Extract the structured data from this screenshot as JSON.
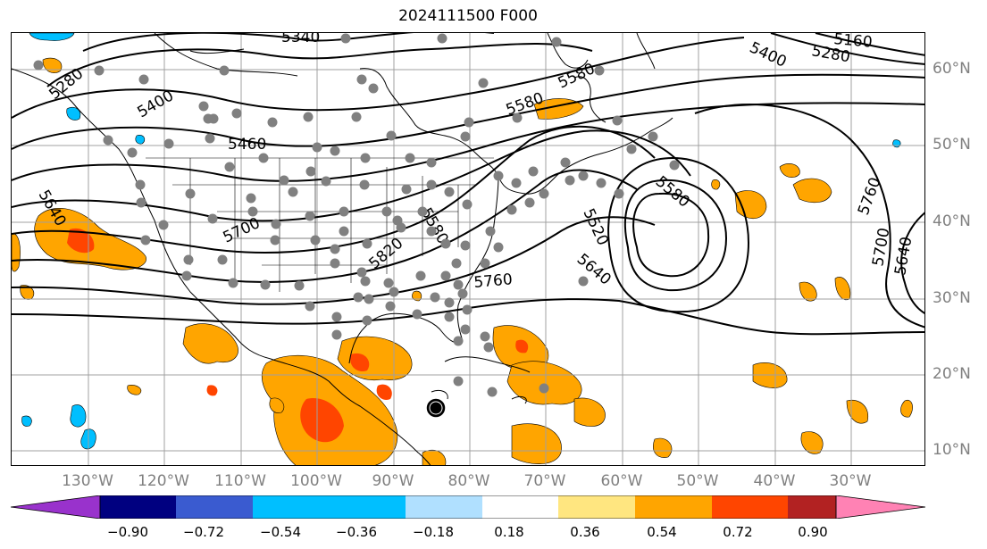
{
  "title": "2024111500 F000",
  "lat_labels": [
    "60°N",
    "50°N",
    "40°N",
    "30°N",
    "20°N",
    "10°N"
  ],
  "lon_labels": [
    "130°W",
    "120°W",
    "110°W",
    "100°W",
    "90°W",
    "80°W",
    "70°W",
    "60°W",
    "50°W",
    "40°W",
    "30°W"
  ],
  "contour_labels": [
    "5340",
    "5280",
    "5400",
    "5460",
    "5580",
    "5520",
    "5640",
    "5700",
    "5760",
    "5580",
    "5820",
    "5640",
    "5760",
    "5700",
    "5640",
    "5520",
    "5580",
    "5400",
    "5280",
    "5160"
  ],
  "colorbar": {
    "ticks": [
      "−0.90",
      "−0.72",
      "−0.54",
      "−0.36",
      "−0.18",
      "0.18",
      "0.36",
      "0.54",
      "0.72",
      "0.90"
    ],
    "colors": [
      "#9932cc",
      "#000080",
      "#3a5bd0",
      "#00bfff",
      "#b0e0ff",
      "#ffffff",
      "#ffe680",
      "#ffa500",
      "#ff4500",
      "#b22222",
      "#ff82b4",
      "#ff82b4"
    ]
  },
  "colors": {
    "positive_light": "#ffa500",
    "positive_strong": "#ff4500",
    "negative_light": "#00bfff",
    "grid": "#a0a0a0",
    "tick_label": "#808080"
  }
}
